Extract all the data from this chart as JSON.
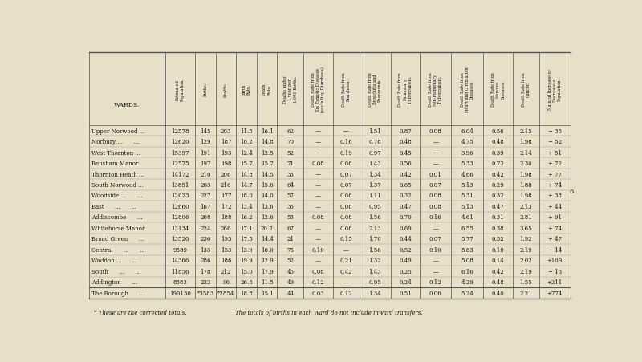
{
  "bg_color": "#e8dfc8",
  "text_color": "#1a1a1a",
  "col_headers": [
    "WARDS.",
    "Estimated\nPopulation.",
    "Births.",
    "Deaths.",
    "Birth\nRate.",
    "Death\nRate.",
    "Deaths under\n1 year per\n1,000 Births.",
    "Death Rate from\nSix Zymotic Diseases\n(excluding Diarrhoea)",
    "Death Rate from\nDiarrhoea.",
    "Death Rate from\nBronchitis and\nPneumonia.",
    "Death Rate from\nPulmonary\nTuberculosis.",
    "Death Rate from\nNon-Pulmonary\nTuberculosis.",
    "Death Rate from\nHeart and Circulation\nDiseases.",
    "Death Rate from\nNervous\nDiseases.",
    "Death Rate from\nCancer.",
    "Natural Increase or\nDecrease of\nPopulation."
  ],
  "rows": [
    [
      "Upper Norwood ...",
      "12578",
      "145",
      "203",
      "11.5",
      "16.1",
      "62",
      "—",
      "—",
      "1.51",
      "0.87",
      "0.08",
      "6.04",
      "0.56",
      "2.15",
      "− 35"
    ],
    [
      "Norbury ...      ...",
      "12620",
      "129",
      "187",
      "10.2",
      "14.8",
      "70",
      "—",
      "0.16",
      "0.78",
      "0.48",
      "—",
      "4.75",
      "0.48",
      "1.98",
      "− 52"
    ],
    [
      "West Thornton ...",
      "15397",
      "191",
      "193",
      "12.4",
      "12.5",
      "52",
      "—",
      "0.19",
      "0.97",
      "0.45",
      "—",
      "3.96",
      "0.39",
      "2.14",
      "+ 51"
    ],
    [
      "Bensham Manor",
      "12575",
      "197",
      "198",
      "15.7",
      "15.7",
      "71",
      "0.08",
      "0.08",
      "1.43",
      "0.56",
      "—",
      "5.33",
      "0.72",
      "2.30",
      "+ 72"
    ],
    [
      "Thornton Heath ...",
      "14172",
      "210",
      "206",
      "14.8",
      "14.5",
      "33",
      "—",
      "0.07",
      "1.34",
      "0.42",
      "0.01",
      "4.66",
      "0.42",
      "1.98",
      "+ 77"
    ],
    [
      "South Norwood ...",
      "13851",
      "203",
      "216",
      "14.7",
      "15.6",
      "64",
      "—",
      "0.07",
      "1.37",
      "0.65",
      "0.07",
      "5.13",
      "0.29",
      "1.88",
      "+ 74"
    ],
    [
      "Woodside ...      ...",
      "12623",
      "227",
      "177",
      "18.0",
      "14.0",
      "57",
      "—",
      "0.08",
      "1.11",
      "0.32",
      "0.08",
      "5.31",
      "0.32",
      "1.98",
      "+ 38"
    ],
    [
      "East      ...      ...",
      "12660",
      "167",
      "172",
      "13.4",
      "13.6",
      "36",
      "—",
      "0.08",
      "0.95",
      "0.47",
      "0.08",
      "5.13",
      "0.47",
      "2.13",
      "+ 44"
    ],
    [
      "Addiscombe      ...",
      "12806",
      "208",
      "188",
      "16.2",
      "12.6",
      "53",
      "0.08",
      "0.08",
      "1.56",
      "0.70",
      "0.16",
      "4.61",
      "0.31",
      "2.81",
      "+ 91"
    ],
    [
      "Whitehorse Manor",
      "13134",
      "224",
      "266",
      "17.1",
      "20.2",
      "67",
      "—",
      "0.08",
      "2.13",
      "0.69",
      "—",
      "6.55",
      "0.38",
      "3.65",
      "+ 74"
    ],
    [
      "Broad Green      ...",
      "13520",
      "236",
      "195",
      "17.5",
      "14.4",
      "21",
      "—",
      "0.15",
      "1.70",
      "0.44",
      "0.07",
      "5.77",
      "0.52",
      "1.92",
      "+ 47"
    ],
    [
      "Central      ...      ...",
      "9589",
      "133",
      "153",
      "13.9",
      "16.0",
      "75",
      "0.10",
      "—",
      "1.56",
      "0.52",
      "0.10",
      "5.63",
      "0.10",
      "2.19",
      "− 14"
    ],
    [
      "Waddon ...      ...",
      "14366",
      "286",
      "186",
      "19.9",
      "12.9",
      "52",
      "—",
      "0.21",
      "1.32",
      "0.49",
      "—",
      "5.08",
      "0.14",
      "2.02",
      "+109"
    ],
    [
      "South      ...      ...",
      "11856",
      "178",
      "212",
      "15.0",
      "17.9",
      "45",
      "0.08",
      "0.42",
      "1.43",
      "0.25",
      "—",
      "6.16",
      "0.42",
      "2.19",
      "− 13"
    ],
    [
      "Addington      ...",
      "8383",
      "222",
      "96",
      "26.5",
      "11.5",
      "49",
      "0.12",
      "—",
      "0.95",
      "0.24",
      "0.12",
      "4.29",
      "0.48",
      "1.55",
      "+211"
    ],
    [
      "The Borough      ...",
      "190130",
      "*3583",
      "*2854",
      "18.8",
      "15.1",
      "44",
      "0.03",
      "0.12",
      "1.34",
      "0.51",
      "0.06",
      "5.24",
      "0.40",
      "2.21",
      "+774"
    ]
  ],
  "footer_note1": "* These are the corrected totals.",
  "footer_note2": "The totals of births in each Ward do not include inward transfers.",
  "col_widths": [
    1.55,
    0.62,
    0.42,
    0.42,
    0.42,
    0.42,
    0.54,
    0.6,
    0.54,
    0.64,
    0.6,
    0.64,
    0.66,
    0.6,
    0.54,
    0.64
  ]
}
